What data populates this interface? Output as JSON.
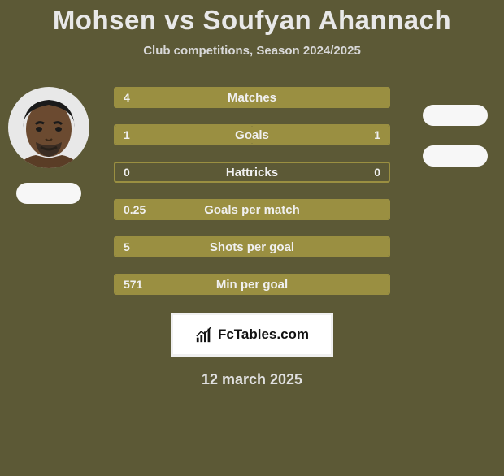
{
  "title": "Mohsen vs Soufyan Ahannach",
  "title_fontsize": 33,
  "subtitle": "Club competitions, Season 2024/2025",
  "subtitle_fontsize": 15,
  "colors": {
    "background": "#5c5936",
    "row_fill": "#9a8f41",
    "row_border": "#9a8f41",
    "title_color": "#e8e8e8",
    "flag_white": "#f7f7f7",
    "footer_border": "#f0f0f0",
    "footer_bg": "#ffffff"
  },
  "players": {
    "left": {
      "has_photo": true,
      "flag": "white"
    },
    "right": {
      "has_photo": false,
      "flag": "white"
    }
  },
  "rows": [
    {
      "label": "Matches",
      "left": "4",
      "right": "",
      "fill_left_pct": 100,
      "fill_right_pct": 0,
      "show_left": true,
      "show_right": false
    },
    {
      "label": "Goals",
      "left": "1",
      "right": "1",
      "fill_left_pct": 50,
      "fill_right_pct": 50,
      "show_left": true,
      "show_right": true
    },
    {
      "label": "Hattricks",
      "left": "0",
      "right": "0",
      "fill_left_pct": 0,
      "fill_right_pct": 0,
      "show_left": true,
      "show_right": true
    },
    {
      "label": "Goals per match",
      "left": "0.25",
      "right": "",
      "fill_left_pct": 100,
      "fill_right_pct": 0,
      "show_left": true,
      "show_right": false
    },
    {
      "label": "Shots per goal",
      "left": "5",
      "right": "",
      "fill_left_pct": 100,
      "fill_right_pct": 0,
      "show_left": true,
      "show_right": false
    },
    {
      "label": "Min per goal",
      "left": "571",
      "right": "",
      "fill_left_pct": 100,
      "fill_right_pct": 0,
      "show_left": true,
      "show_right": false
    }
  ],
  "footer": {
    "brand": "FcTables.com",
    "date": "12 march 2025"
  }
}
